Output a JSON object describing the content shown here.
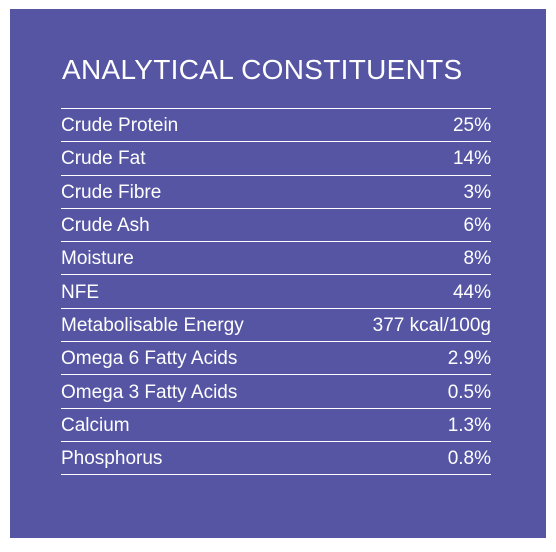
{
  "title": "ANALYTICAL CONSTITUENTS",
  "rows": [
    {
      "label": "Crude Protein",
      "value": "25%"
    },
    {
      "label": "Crude Fat",
      "value": "14%"
    },
    {
      "label": "Crude Fibre",
      "value": "3%"
    },
    {
      "label": "Crude Ash",
      "value": "6%"
    },
    {
      "label": "Moisture",
      "value": "8%"
    },
    {
      "label": "NFE",
      "value": "44%"
    },
    {
      "label": "Metabolisable Energy",
      "value": "377 kcal/100g"
    },
    {
      "label": "Omega 6 Fatty Acids",
      "value": "2.9%"
    },
    {
      "label": "Omega 3 Fatty Acids",
      "value": "0.5%"
    },
    {
      "label": "Calcium",
      "value": "1.3%"
    },
    {
      "label": "Phosphorus",
      "value": "0.8%"
    }
  ],
  "colors": {
    "panel_background": "#5555a4",
    "text": "#ffffff"
  }
}
